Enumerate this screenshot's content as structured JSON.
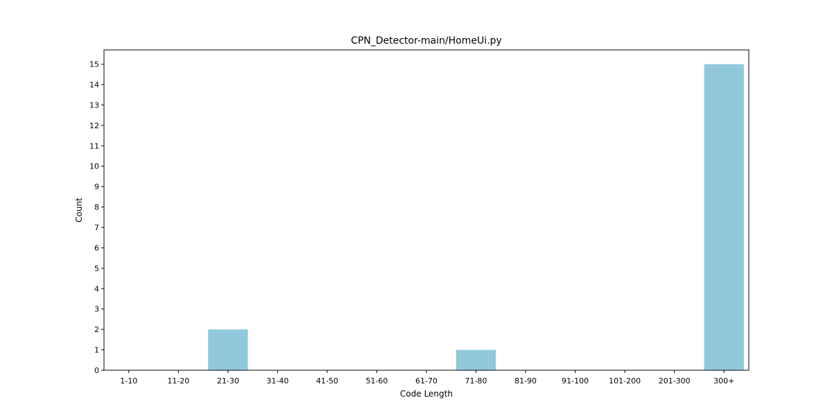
{
  "chart_data": {
    "type": "bar",
    "title": "CPN_Detector-main/HomeUi.py",
    "xlabel": "Code Length",
    "ylabel": "Count",
    "categories": [
      "1-10",
      "11-20",
      "21-30",
      "31-40",
      "41-50",
      "51-60",
      "61-70",
      "71-80",
      "81-90",
      "91-100",
      "101-200",
      "201-300",
      "300+"
    ],
    "values": [
      0,
      0,
      2,
      0,
      0,
      0,
      0,
      1,
      0,
      0,
      0,
      0,
      15
    ],
    "ylim": [
      0,
      15.7
    ],
    "yticks": [
      0,
      1,
      2,
      3,
      4,
      5,
      6,
      7,
      8,
      9,
      10,
      11,
      12,
      13,
      14,
      15
    ],
    "bar_color": "#92c8dc",
    "grid": false,
    "legend": "none"
  }
}
